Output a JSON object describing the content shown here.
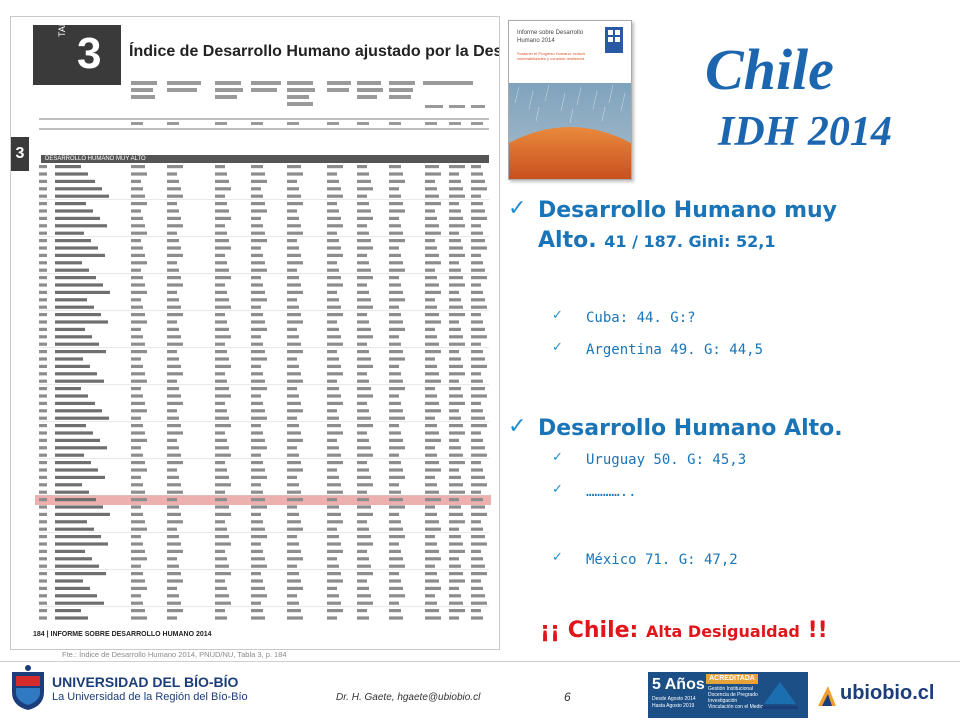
{
  "table_image": {
    "tab_word": "TABLA",
    "tab_number": "3",
    "title": "Índice de Desarrollo Humano ajustado por la Desigualdad",
    "side_number": "3",
    "category": "DESARROLLO HUMANO MUY ALTO",
    "footer": "184  |  INFORME SOBRE DESARROLLO HUMANO 2014",
    "highlight_row": "41 Chile"
  },
  "source_caption": "Fte.: Índice de Desarrollo Humano 2014, PNUD/NU, Tabla 3, p. 184",
  "book_cover": {
    "title": "Informe sobre Desarrollo Humano 2014",
    "subtitle": "Sostener el Progreso Humano: reducir vulnerabilidades y construir resiliencia"
  },
  "heading": {
    "title": "Chile",
    "subtitle": "IDH 2014"
  },
  "bullets": [
    {
      "label_line1": "Desarrollo Humano muy",
      "label_line2": "Alto.",
      "label_small": "41 / 187. Gini: 52,1",
      "subitems": [
        "Cuba: 44. G:?",
        "Argentina 49. G: 44,5"
      ]
    },
    {
      "label_line1": "Desarrollo Humano Alto.",
      "subitems": [
        "Uruguay 50. G: 45,3",
        "…………..",
        "México 71. G: 47,2"
      ]
    }
  ],
  "alert": {
    "open": "¡¡",
    "main": "Chile:",
    "small": "Alta Desigualdad",
    "close": "!!"
  },
  "footer": {
    "university": "UNIVERSIDAD DEL BÍO-BÍO",
    "university_sub": "La Universidad de la Región del Bío-Bío",
    "author": "Dr. H. Gaete,   hgaete@ubiobio.cl",
    "page_number": "6",
    "accreditation_years": "5 Años",
    "accreditation_dates": "Desde Agosto 2014\nHasta Agosto 2019",
    "accreditation_label": "ACREDITADA",
    "accreditation_areas": [
      "Gestión Institucional",
      "Docencia de Pregrado",
      "Investigación",
      "Vinculación con el Medio"
    ],
    "brand": "ubiobio.cl"
  },
  "colors": {
    "title_blue": "#1c66b0",
    "bullet_blue": "#1a75b8",
    "alert_red": "#e0161b",
    "highlight": "#e06e6e"
  }
}
